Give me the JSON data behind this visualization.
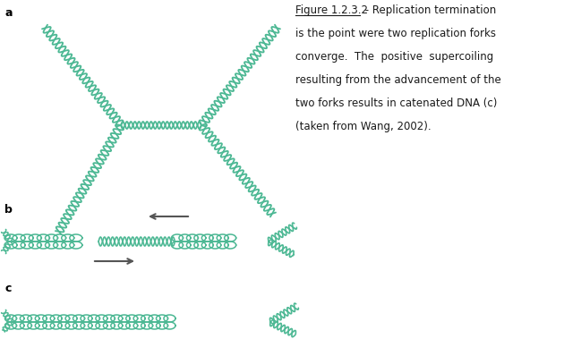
{
  "dna_color": "#4db894",
  "bg_color": "#ffffff",
  "text_color": "#1a1a1a",
  "arrow_color": "#555555",
  "label_a": "a",
  "label_b": "b",
  "label_c": "c",
  "figure_label": "Figure 1.2.3.2",
  "caption_line1": " - Replication termination",
  "caption_line2": "is the point were two replication forks",
  "caption_line3": "converge.  The  positive  supercoiling",
  "caption_line4": "resulting from the advancement of the",
  "caption_line5": "two forks results in catenated DNA (c)",
  "caption_line6": "(taken from Wang, 2002)."
}
